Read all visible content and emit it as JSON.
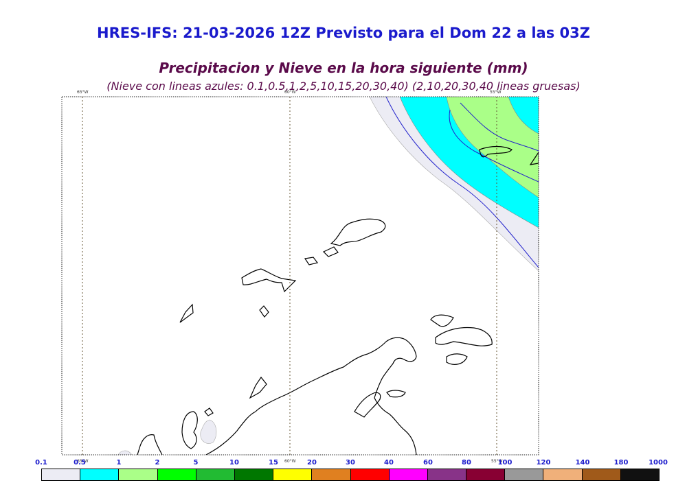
{
  "header": {
    "model_title": "HRES-IFS: 21-03-2026 12Z Previsto para el Dom 22 a las 03Z",
    "variable_title": "Precipitacion y Nieve en la hora siguiente (mm)",
    "subtitle": "(Nieve con lineas azules: 0.1,0.5,1,2,5,10,15,20,30,40)  (2,10,20,30,40 lineas gruesas)"
  },
  "map": {
    "meridians": [
      {
        "label_top": "65°W",
        "label_bottom": "65°W"
      },
      {
        "label_top": "60°W",
        "label_bottom": "60°W"
      },
      {
        "label_top": "55°W",
        "label_bottom": "55°W"
      }
    ],
    "precip_colors": {
      "light": "#ececf4",
      "medium": "#00ffff",
      "heavy": "#aaff88"
    },
    "coastline_color": "#000000",
    "snow_contour_color": "#2222cc"
  },
  "legend": {
    "labels": [
      "0.1",
      "0.5",
      "1",
      "2",
      "5",
      "10",
      "15",
      "20",
      "30",
      "40",
      "60",
      "80",
      "100",
      "120",
      "140",
      "180",
      "1000"
    ],
    "colors": [
      "#ececf4",
      "#00ffff",
      "#aaff88",
      "#00ff00",
      "#22bb33",
      "#007700",
      "#ffff00",
      "#e08020",
      "#ff0000",
      "#ff00ff",
      "#883388",
      "#880033",
      "#999999",
      "#f0b07a",
      "#a05a1a",
      "#111111"
    ]
  }
}
